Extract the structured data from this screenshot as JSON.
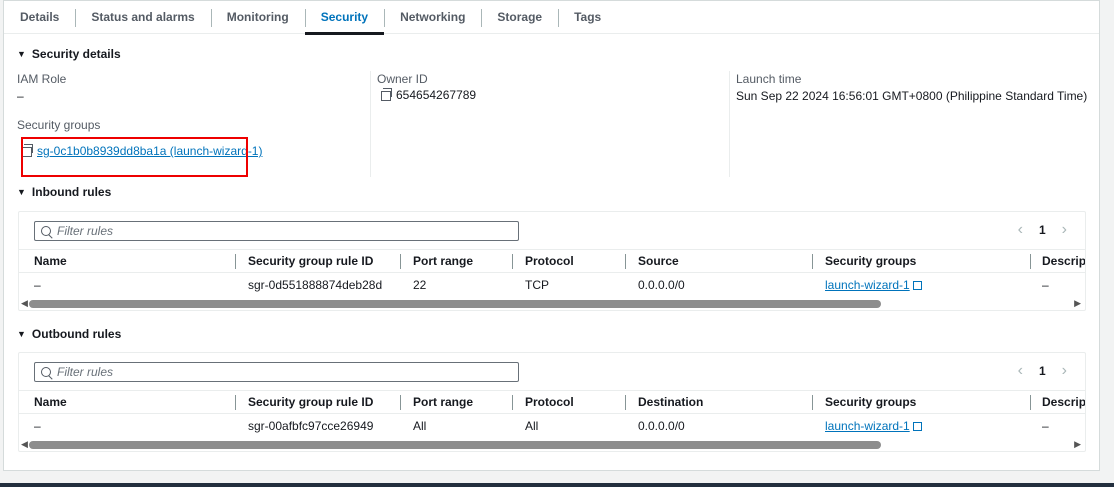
{
  "tabs": [
    "Details",
    "Status and alarms",
    "Monitoring",
    "Security",
    "Networking",
    "Storage",
    "Tags"
  ],
  "active_tab": "Security",
  "security_details": {
    "title": "Security details",
    "iam_role_label": "IAM Role",
    "iam_role_value": "–",
    "owner_id_label": "Owner ID",
    "owner_id_value": "654654267789",
    "launch_time_label": "Launch time",
    "launch_time_value": "Sun Sep 22 2024 16:56:01 GMT+0800 (Philippine Standard Time)",
    "security_groups_label": "Security groups",
    "security_group_link": "sg-0c1b0b8939dd8ba1a (launch-wizard-1)"
  },
  "inbound": {
    "title": "Inbound rules",
    "filter_placeholder": "Filter rules",
    "page": "1",
    "columns": [
      "Name",
      "Security group rule ID",
      "Port range",
      "Protocol",
      "Source",
      "Security groups",
      "Descripti"
    ],
    "rows": [
      [
        "–",
        "sgr-0d551888874deb28d",
        "22",
        "TCP",
        "0.0.0.0/0",
        "launch-wizard-1",
        "–"
      ]
    ]
  },
  "outbound": {
    "title": "Outbound rules",
    "filter_placeholder": "Filter rules",
    "page": "1",
    "columns": [
      "Name",
      "Security group rule ID",
      "Port range",
      "Protocol",
      "Destination",
      "Security groups",
      "Descripti"
    ],
    "rows": [
      [
        "–",
        "sgr-00afbfc97cce26949",
        "All",
        "All",
        "0.0.0.0/0",
        "launch-wizard-1",
        "–"
      ]
    ]
  },
  "colors": {
    "link": "#0073bb",
    "highlight_box": "#e00000"
  }
}
